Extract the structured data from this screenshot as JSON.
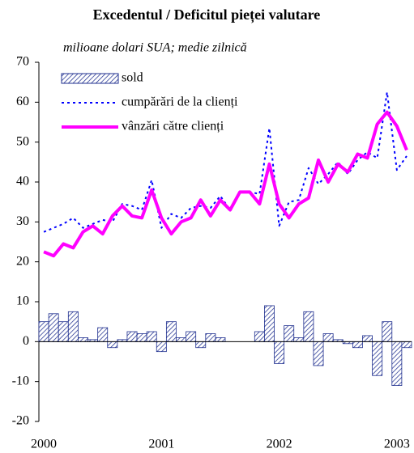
{
  "chart_data": {
    "type": "combo",
    "title": "Excedentul / Deficitul pieței valutare",
    "subtitle": "milioane dolari SUA; medie zilnică",
    "categories": [
      "2000",
      null,
      null,
      null,
      null,
      null,
      null,
      null,
      null,
      null,
      null,
      null,
      "2001",
      null,
      null,
      null,
      null,
      null,
      null,
      null,
      null,
      null,
      null,
      null,
      "2002",
      null,
      null,
      null,
      null,
      null,
      null,
      null,
      null,
      null,
      null,
      null,
      "2003",
      null
    ],
    "ylim": [
      -20,
      70
    ],
    "yticks": [
      -20,
      -10,
      0,
      10,
      20,
      30,
      40,
      50,
      60,
      70
    ],
    "legend": "upper left",
    "series": [
      {
        "name": "sold",
        "type": "bar",
        "color": "#1f2f8f",
        "values": [
          5,
          7,
          5,
          7.5,
          1,
          0.5,
          3.5,
          -1.5,
          0.5,
          2.5,
          2,
          2.5,
          -2.5,
          5,
          1,
          2.5,
          -1.5,
          2,
          1,
          0,
          0,
          0,
          2.5,
          9,
          -5.5,
          4,
          1,
          7.5,
          -6,
          2,
          0.5,
          -0.5,
          -1.5,
          1.5,
          -8.5,
          5,
          -11,
          -1.5
        ]
      },
      {
        "name": "cumpărări de la clienți",
        "type": "line",
        "linestyle": "dotted",
        "color": "#0000ff",
        "values": [
          27.5,
          28.5,
          29.5,
          31,
          28.5,
          29.5,
          30.5,
          30,
          34.5,
          34,
          33,
          40.5,
          28.5,
          32,
          31,
          33.5,
          34,
          33.5,
          36.5,
          33,
          37.5,
          37.5,
          37,
          53.5,
          29,
          35,
          35.5,
          43.5,
          39.5,
          42,
          45,
          42,
          45.5,
          47.5,
          46,
          62.5,
          43,
          46.5
        ]
      },
      {
        "name": "vânzări către clienți",
        "type": "line",
        "linestyle": "solid",
        "color": "#ff00ff",
        "values": [
          22.5,
          21.5,
          24.5,
          23.5,
          27.5,
          29,
          27,
          31.5,
          34,
          31.5,
          31,
          38,
          31,
          27,
          30,
          31,
          35.5,
          31.5,
          35.5,
          33,
          37.5,
          37.5,
          34.5,
          44.5,
          34.5,
          31,
          34.5,
          36,
          45.5,
          40,
          44.5,
          42.5,
          47,
          46,
          54.5,
          57.5,
          54,
          48
        ]
      }
    ]
  }
}
